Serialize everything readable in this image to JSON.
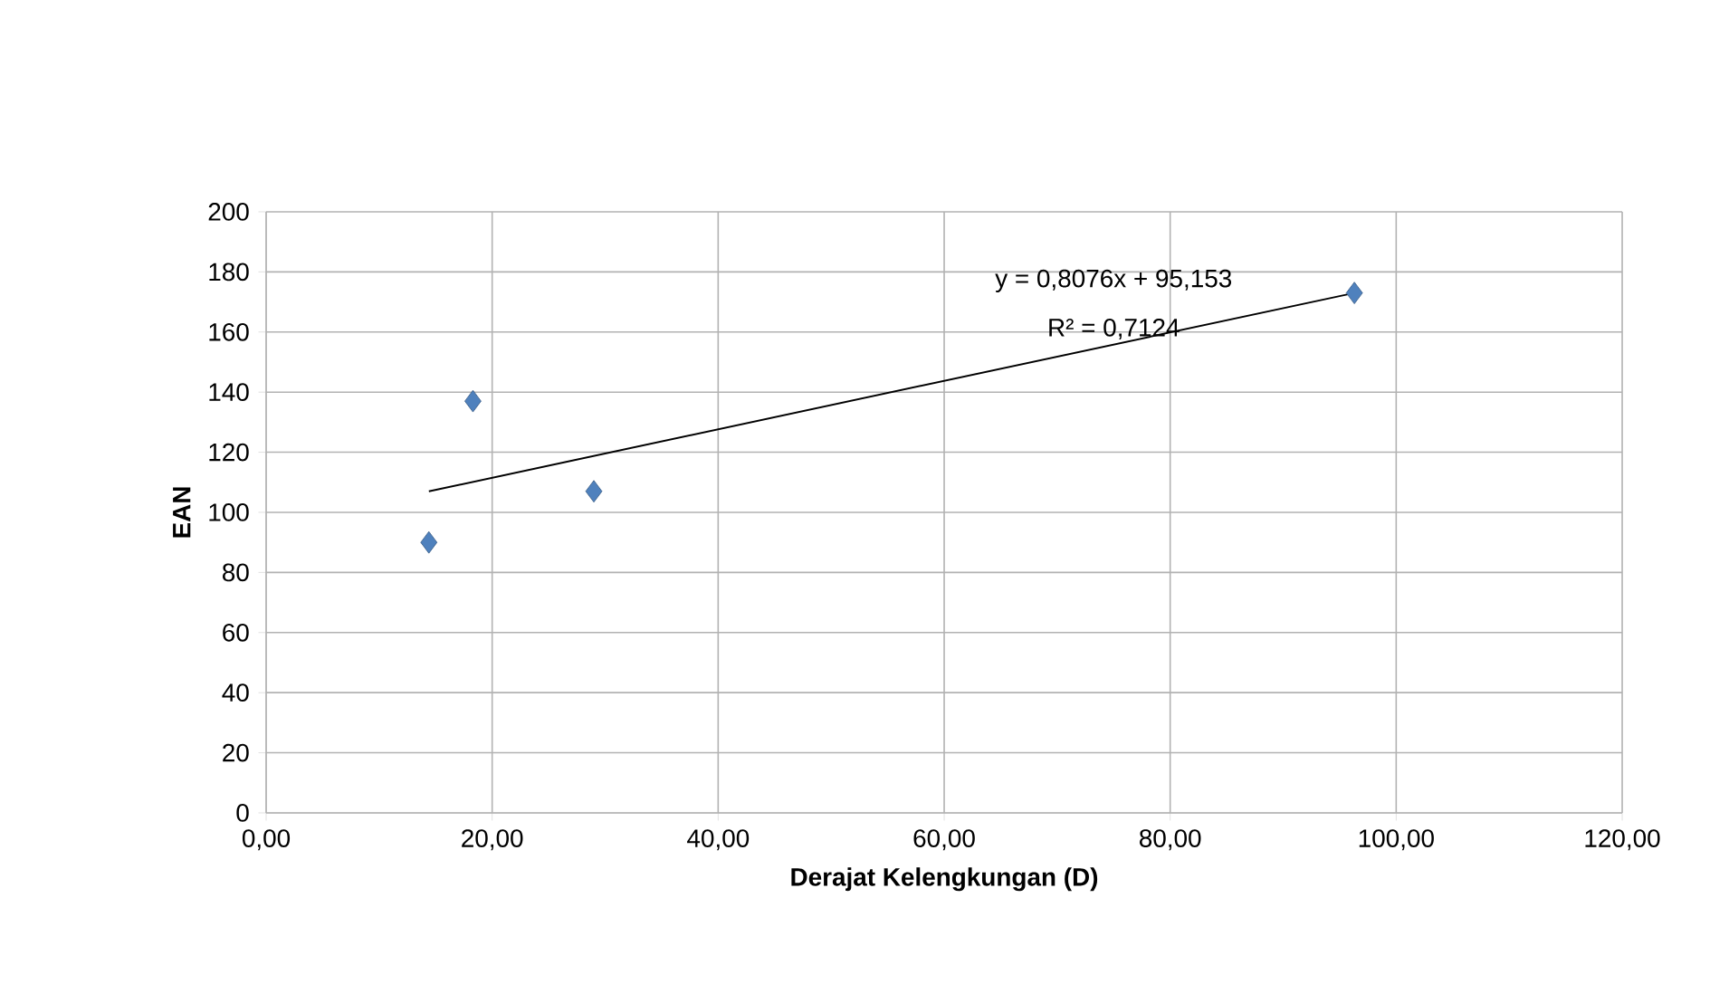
{
  "chart_data": {
    "type": "scatter",
    "xlabel": "Derajat Kelengkungan (D)",
    "ylabel": "EAN",
    "xlim": [
      0,
      120
    ],
    "ylim": [
      0,
      200
    ],
    "xticks": [
      {
        "value": 0,
        "label": "0,00"
      },
      {
        "value": 20,
        "label": "20,00"
      },
      {
        "value": 40,
        "label": "40,00"
      },
      {
        "value": 60,
        "label": "60,00"
      },
      {
        "value": 80,
        "label": "80,00"
      },
      {
        "value": 100,
        "label": "100,00"
      },
      {
        "value": 120,
        "label": "120,00"
      }
    ],
    "yticks": [
      0,
      20,
      40,
      60,
      80,
      100,
      120,
      140,
      160,
      180,
      200
    ],
    "grid": true,
    "marker": "diamond",
    "series": [
      {
        "color": "#4f81bd",
        "x": [
          14.4,
          18.3,
          29.0,
          96.3
        ],
        "values": [
          90,
          137,
          107,
          173
        ]
      },
      {
        "type": "line",
        "color": "#000000",
        "marker": "none",
        "x": [
          14.4,
          96.3
        ],
        "values": [
          107,
          173
        ]
      }
    ],
    "annotations": [
      "y = 0,8076x + 95,153",
      "R² = 0,7124"
    ]
  }
}
